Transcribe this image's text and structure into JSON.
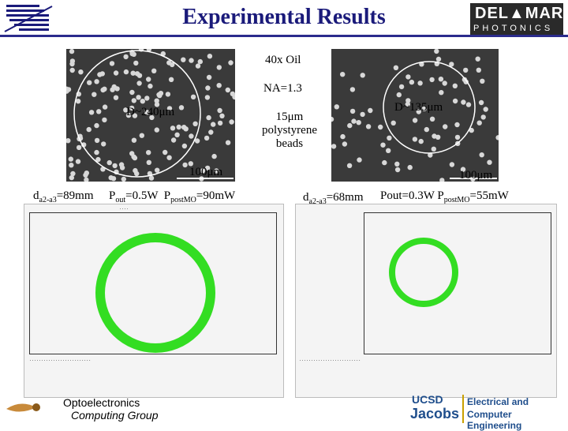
{
  "header": {
    "title": "Experimental Results",
    "brand_line1": "DEL▲MAR",
    "brand_line2": "PHOTONICS"
  },
  "micrographs": {
    "left": {
      "diameter_label": "D~240μm",
      "scale_label": "100μm"
    },
    "right": {
      "diameter_label": "D~135μm",
      "scale_label": "100μm"
    }
  },
  "annotations": {
    "objective": "40x Oil",
    "na": "NA=1.3",
    "beads_line1": "15μm",
    "beads_line2": "polystyrene",
    "beads_line3": "beads"
  },
  "params": {
    "left": {
      "d_label": "d",
      "d_sub": "a2-a3",
      "d_value": "=89mm",
      "pout_label": "P",
      "pout_sub": "out",
      "pout_value": "=0.5W",
      "ppost_label": "P",
      "ppost_sub": "postMO",
      "ppost_value": "=90mW"
    },
    "right": {
      "d_label": "d",
      "d_sub": "a2-a3",
      "d_value": "=68mm",
      "pout_text": "Pout=0.3W",
      "ppost_label": "P",
      "ppost_sub": "postMO",
      "ppost_value": "=55mW"
    }
  },
  "footer": {
    "left_line1": "Optoelectronics",
    "left_line2": "Computing Group",
    "right_ucsd": "UCSD",
    "right_jacobs": "Jacobs",
    "right_dept1": "Electrical and",
    "right_dept2": "Computer Engineering"
  },
  "colors": {
    "accent": "#1a1a7a",
    "ring": "#33dd22",
    "ucsd_blue": "#1f4e8c",
    "ucsd_gold": "#c8a000"
  }
}
